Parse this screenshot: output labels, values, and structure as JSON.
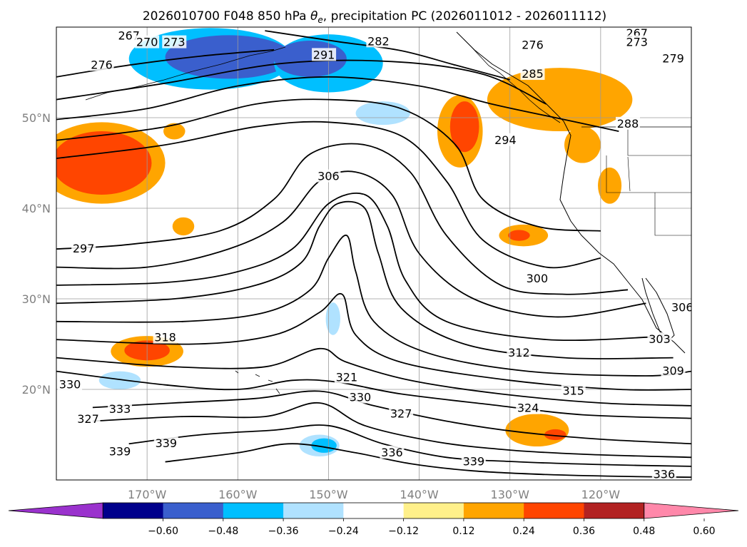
{
  "chart_data": {
    "type": "contour-map",
    "title_prefix": "2026010700 F048 850 hPa ",
    "title_theta": "θ",
    "title_theta_sub": "e",
    "title_suffix": ", precipitation PC (2026011012 - 2026011112)",
    "projection": "lat-lon",
    "lon_range": [
      -180,
      -110
    ],
    "lat_range": [
      10,
      60
    ],
    "lat_ticks": [
      {
        "value": 20,
        "label": "20°N"
      },
      {
        "value": 30,
        "label": "30°N"
      },
      {
        "value": 40,
        "label": "40°N"
      },
      {
        "value": 50,
        "label": "50°N"
      }
    ],
    "lon_ticks": [
      {
        "value": -170,
        "label": "170°W"
      },
      {
        "value": -160,
        "label": "160°W"
      },
      {
        "value": -150,
        "label": "150°W"
      },
      {
        "value": -140,
        "label": "140°W"
      },
      {
        "value": -130,
        "label": "130°W"
      },
      {
        "value": -120,
        "label": "120°W"
      }
    ],
    "grid": true,
    "colorbar": {
      "placement": "bottom",
      "extend": "both",
      "levels": [
        -0.72,
        -0.6,
        -0.48,
        -0.36,
        -0.24,
        -0.12,
        0.12,
        0.24,
        0.36,
        0.48,
        0.6,
        0.72
      ],
      "colors": [
        "#9a32cd",
        "#00008b",
        "#3a5fcd",
        "#00bfff",
        "#b0e2ff",
        "#ffffff",
        "#fff08a",
        "#ffa500",
        "#ff4500",
        "#b22222",
        "#ff88aa"
      ],
      "tick_values": [
        -0.6,
        -0.48,
        -0.36,
        -0.24,
        -0.12,
        0.12,
        0.24,
        0.36,
        0.48,
        0.6
      ],
      "tick_labels": [
        "−0.60",
        "−0.48",
        "−0.36",
        "−0.24",
        "−0.12",
        "0.12",
        "0.24",
        "0.36",
        "0.48",
        "0.60"
      ]
    },
    "precip_regions": [
      {
        "level": -0.36,
        "lon": -163.0,
        "lat": 56.5,
        "rx": 9.0,
        "ry": 3.4
      },
      {
        "level": -0.48,
        "lon": -161.0,
        "lat": 56.7,
        "rx": 7.0,
        "ry": 2.4
      },
      {
        "level": -0.36,
        "lon": -150.0,
        "lat": 56.0,
        "rx": 6.0,
        "ry": 3.2
      },
      {
        "level": -0.48,
        "lon": -152.0,
        "lat": 56.5,
        "rx": 4.0,
        "ry": 2.0
      },
      {
        "level": -0.24,
        "lon": -144.0,
        "lat": 50.5,
        "rx": 3.0,
        "ry": 1.3
      },
      {
        "level": -0.24,
        "lon": -173.0,
        "lat": 21.0,
        "rx": 2.3,
        "ry": 1.0
      },
      {
        "level": -0.24,
        "lon": -151.0,
        "lat": 13.8,
        "rx": 2.2,
        "ry": 1.2
      },
      {
        "level": -0.36,
        "lon": -150.5,
        "lat": 13.8,
        "rx": 1.4,
        "ry": 0.8
      },
      {
        "level": -0.24,
        "lon": -149.5,
        "lat": 27.8,
        "rx": 0.8,
        "ry": 1.8
      },
      {
        "level": -0.12,
        "lon": -166.0,
        "lat": 22.5,
        "rx": 2.0,
        "ry": 0.8
      },
      {
        "level": 0.24,
        "lon": -175.0,
        "lat": 45.0,
        "rx": 7.0,
        "ry": 4.5
      },
      {
        "level": 0.36,
        "lon": -175.0,
        "lat": 45.0,
        "rx": 5.5,
        "ry": 3.5
      },
      {
        "level": 0.24,
        "lon": -170.0,
        "lat": 24.2,
        "rx": 4.0,
        "ry": 1.7
      },
      {
        "level": 0.36,
        "lon": -170.0,
        "lat": 24.3,
        "rx": 2.5,
        "ry": 1.1
      },
      {
        "level": 0.24,
        "lon": -124.5,
        "lat": 52.0,
        "rx": 8.0,
        "ry": 3.5
      },
      {
        "level": 0.24,
        "lon": -135.5,
        "lat": 48.5,
        "rx": 2.5,
        "ry": 4.0
      },
      {
        "level": 0.36,
        "lon": -135.0,
        "lat": 49.0,
        "rx": 1.6,
        "ry": 2.8
      },
      {
        "level": 0.24,
        "lon": -128.5,
        "lat": 37.0,
        "rx": 2.7,
        "ry": 1.2
      },
      {
        "level": 0.36,
        "lon": -129.0,
        "lat": 37.0,
        "rx": 1.2,
        "ry": 0.6
      },
      {
        "level": 0.24,
        "lon": -127.0,
        "lat": 15.5,
        "rx": 3.5,
        "ry": 1.8
      },
      {
        "level": 0.36,
        "lon": -125.0,
        "lat": 15.0,
        "rx": 1.2,
        "ry": 0.6
      },
      {
        "level": 0.24,
        "lon": -166.0,
        "lat": 38.0,
        "rx": 1.2,
        "ry": 1.0
      },
      {
        "level": 0.24,
        "lon": -167.0,
        "lat": 48.5,
        "rx": 1.2,
        "ry": 0.9
      },
      {
        "level": 0.24,
        "lon": -122.0,
        "lat": 47.0,
        "rx": 2.0,
        "ry": 2.0
      },
      {
        "level": 0.24,
        "lon": -119.0,
        "lat": 42.5,
        "rx": 1.3,
        "ry": 2.0
      }
    ],
    "contours": [
      {
        "value": 276,
        "points": [
          [
            -180,
            54.5
          ],
          [
            -172,
            55.8
          ],
          [
            -164,
            56.8
          ],
          [
            -156,
            57.5
          ]
        ]
      },
      {
        "value": 282,
        "points": [
          [
            -157,
            59.6
          ],
          [
            -149,
            58.4
          ],
          [
            -142,
            57.4
          ],
          [
            -136,
            55.8
          ],
          [
            -130,
            54.2
          ]
        ]
      },
      {
        "value": 285,
        "points": [
          [
            -180,
            52.0
          ],
          [
            -168,
            53.8
          ],
          [
            -155,
            56.0
          ],
          [
            -143,
            56.2
          ],
          [
            -133,
            54.8
          ],
          [
            -126,
            51.5
          ]
        ]
      },
      {
        "value": 288,
        "points": [
          [
            -180,
            49.8
          ],
          [
            -170,
            51.0
          ],
          [
            -160,
            53.5
          ],
          [
            -150,
            54.5
          ],
          [
            -140,
            53.5
          ],
          [
            -132,
            51.5
          ],
          [
            -125,
            50.0
          ],
          [
            -118,
            48.5
          ]
        ]
      },
      {
        "value": 291,
        "points": [
          [
            -180,
            47.5
          ],
          [
            -168,
            49.0
          ],
          [
            -158,
            51.5
          ],
          [
            -150,
            52.0
          ],
          [
            -142,
            51.0
          ],
          [
            -136,
            47.0
          ],
          [
            -133,
            41.0
          ],
          [
            -127,
            38.0
          ],
          [
            -120,
            37.5
          ]
        ]
      },
      {
        "value": 294,
        "points": [
          [
            -180,
            45.5
          ],
          [
            -168,
            47.0
          ],
          [
            -158,
            49.0
          ],
          [
            -150,
            49.5
          ],
          [
            -142,
            48.0
          ],
          [
            -137,
            43.0
          ],
          [
            -133,
            36.5
          ],
          [
            -126,
            33.5
          ],
          [
            -120,
            34.5
          ]
        ]
      },
      {
        "value": 297,
        "points": [
          [
            -180,
            35.5
          ],
          [
            -172,
            36.0
          ],
          [
            -162,
            37.5
          ],
          [
            -156,
            41.0
          ],
          [
            -152,
            46.0
          ],
          [
            -146,
            47.0
          ],
          [
            -141,
            44.0
          ],
          [
            -137,
            37.0
          ],
          [
            -131,
            31.5
          ],
          [
            -124,
            30.5
          ],
          [
            -117,
            31.0
          ]
        ]
      },
      {
        "value": 300,
        "points": [
          [
            -180,
            33.5
          ],
          [
            -170,
            33.5
          ],
          [
            -161,
            35.5
          ],
          [
            -155,
            38.5
          ],
          [
            -151,
            43.0
          ],
          [
            -147,
            44.0
          ],
          [
            -143,
            41.5
          ],
          [
            -140,
            35.0
          ],
          [
            -134,
            30.0
          ],
          [
            -125,
            28.0
          ],
          [
            -115,
            29.5
          ]
        ]
      },
      {
        "value": 303,
        "points": [
          [
            -180,
            31.5
          ],
          [
            -168,
            31.8
          ],
          [
            -160,
            33.0
          ],
          [
            -154,
            35.5
          ],
          [
            -150,
            40.5
          ],
          [
            -146,
            41.5
          ],
          [
            -143.5,
            38.0
          ],
          [
            -141.5,
            32.0
          ],
          [
            -137,
            27.5
          ],
          [
            -126,
            25.5
          ],
          [
            -114,
            25.8
          ]
        ]
      },
      {
        "value": 306,
        "points": [
          [
            -180,
            29.5
          ],
          [
            -167,
            30.0
          ],
          [
            -158,
            31.5
          ],
          [
            -153,
            34.0
          ],
          [
            -151,
            38.0
          ],
          [
            -149,
            40.5
          ],
          [
            -146,
            40.0
          ],
          [
            -144.5,
            35.0
          ],
          [
            -142,
            29.0
          ],
          [
            -135,
            25.0
          ],
          [
            -124,
            23.5
          ],
          [
            -112,
            23.5
          ]
        ]
      },
      {
        "value": 309,
        "points": [
          [
            -180,
            27.5
          ],
          [
            -166,
            27.5
          ],
          [
            -157,
            28.5
          ],
          [
            -152,
            31.0
          ],
          [
            -150,
            34.5
          ],
          [
            -148,
            37.0
          ],
          [
            -147,
            33.0
          ],
          [
            -145,
            27.5
          ],
          [
            -139,
            24.0
          ],
          [
            -128,
            22.0
          ],
          [
            -115,
            21.5
          ],
          [
            -110,
            22.0
          ]
        ]
      },
      {
        "value": 312,
        "points": [
          [
            -180,
            25.5
          ],
          [
            -165,
            25.0
          ],
          [
            -156,
            26.0
          ],
          [
            -151,
            28.5
          ],
          [
            -148.5,
            30.5
          ],
          [
            -147,
            26.0
          ],
          [
            -142,
            23.0
          ],
          [
            -130,
            21.0
          ],
          [
            -118,
            20.0
          ],
          [
            -110,
            20.0
          ]
        ]
      },
      {
        "value": 315,
        "points": [
          [
            -180,
            23.5
          ],
          [
            -167,
            22.5
          ],
          [
            -157,
            22.5
          ],
          [
            -151,
            24.5
          ],
          [
            -148,
            23.0
          ],
          [
            -141,
            21.0
          ],
          [
            -131,
            19.5
          ],
          [
            -120,
            18.5
          ],
          [
            -110,
            18.2
          ]
        ]
      },
      {
        "value": 318,
        "points": [
          [
            -180,
            22.0
          ],
          [
            -168,
            20.5
          ],
          [
            -160,
            20.0
          ],
          [
            -154,
            21.0
          ],
          [
            -149,
            20.8
          ],
          [
            -142,
            19.5
          ],
          [
            -132,
            18.3
          ],
          [
            -122,
            17.2
          ],
          [
            -110,
            16.8
          ]
        ]
      },
      {
        "value": 321,
        "points": [
          [
            -176,
            18.0
          ],
          [
            -167,
            18.5
          ],
          [
            -158,
            19.0
          ],
          [
            -151,
            19.8
          ],
          [
            -145,
            18.2
          ],
          [
            -137,
            16.5
          ],
          [
            -129,
            15.3
          ],
          [
            -120,
            14.5
          ],
          [
            -110,
            14.0
          ]
        ]
      },
      {
        "value": 327,
        "points": [
          [
            -176,
            16.5
          ],
          [
            -166,
            17.0
          ],
          [
            -157,
            17.0
          ],
          [
            -151,
            18.5
          ],
          [
            -146,
            16.0
          ],
          [
            -138,
            14.2
          ],
          [
            -130,
            13.3
          ],
          [
            -121,
            12.8
          ],
          [
            -110,
            12.5
          ]
        ]
      },
      {
        "value": 330,
        "points": [
          [
            -172,
            14.0
          ],
          [
            -164,
            15.0
          ],
          [
            -156,
            15.5
          ],
          [
            -150,
            16.0
          ],
          [
            -144,
            14.0
          ],
          [
            -137,
            12.5
          ],
          [
            -129,
            12.0
          ],
          [
            -120,
            11.7
          ],
          [
            -110,
            11.5
          ]
        ]
      },
      {
        "value": 336,
        "points": [
          [
            -168,
            12.0
          ],
          [
            -160,
            13.0
          ],
          [
            -154,
            14.0
          ],
          [
            -147,
            13.0
          ],
          [
            -141,
            11.8
          ],
          [
            -134,
            11.0
          ],
          [
            -126,
            10.6
          ],
          [
            -118,
            10.4
          ],
          [
            -110,
            10.3
          ]
        ]
      }
    ],
    "contour_labels": [
      {
        "text": "267",
        "lon": -172.0,
        "lat": 59.0
      },
      {
        "text": "270",
        "lon": -170.0,
        "lat": 58.3
      },
      {
        "text": "273",
        "lon": -167.0,
        "lat": 58.3
      },
      {
        "text": "276",
        "lon": -175.0,
        "lat": 55.8
      },
      {
        "text": "291",
        "lon": -150.5,
        "lat": 56.9
      },
      {
        "text": "282",
        "lon": -144.5,
        "lat": 58.4
      },
      {
        "text": "276",
        "lon": -127.5,
        "lat": 58.0
      },
      {
        "text": "267",
        "lon": -116.0,
        "lat": 59.3
      },
      {
        "text": "273",
        "lon": -116.0,
        "lat": 58.3
      },
      {
        "text": "279",
        "lon": -112.0,
        "lat": 56.5
      },
      {
        "text": "285",
        "lon": -127.5,
        "lat": 54.8
      },
      {
        "text": "288",
        "lon": -117.0,
        "lat": 49.3
      },
      {
        "text": "294",
        "lon": -130.5,
        "lat": 47.5
      },
      {
        "text": "306",
        "lon": -150.0,
        "lat": 43.5
      },
      {
        "text": "297",
        "lon": -177.0,
        "lat": 35.5
      },
      {
        "text": "300",
        "lon": -127.0,
        "lat": 32.2
      },
      {
        "text": "306",
        "lon": -111.0,
        "lat": 29.0
      },
      {
        "text": "303",
        "lon": -113.5,
        "lat": 25.5
      },
      {
        "text": "318",
        "lon": -168.0,
        "lat": 25.7
      },
      {
        "text": "312",
        "lon": -129.0,
        "lat": 24.0
      },
      {
        "text": "309",
        "lon": -112.0,
        "lat": 22.0
      },
      {
        "text": "330",
        "lon": -178.5,
        "lat": 20.5
      },
      {
        "text": "321",
        "lon": -148.0,
        "lat": 21.3
      },
      {
        "text": "330",
        "lon": -146.5,
        "lat": 19.1
      },
      {
        "text": "315",
        "lon": -123.0,
        "lat": 19.8
      },
      {
        "text": "327",
        "lon": -176.5,
        "lat": 16.7
      },
      {
        "text": "333",
        "lon": -173.0,
        "lat": 17.8
      },
      {
        "text": "327",
        "lon": -142.0,
        "lat": 17.3
      },
      {
        "text": "324",
        "lon": -128.0,
        "lat": 17.9
      },
      {
        "text": "339",
        "lon": -173.0,
        "lat": 13.1
      },
      {
        "text": "339",
        "lon": -167.9,
        "lat": 14.0
      },
      {
        "text": "336",
        "lon": -143.0,
        "lat": 13.0
      },
      {
        "text": "339",
        "lon": -134.0,
        "lat": 12.0
      },
      {
        "text": "336",
        "lon": -113.0,
        "lat": 10.6
      }
    ]
  }
}
